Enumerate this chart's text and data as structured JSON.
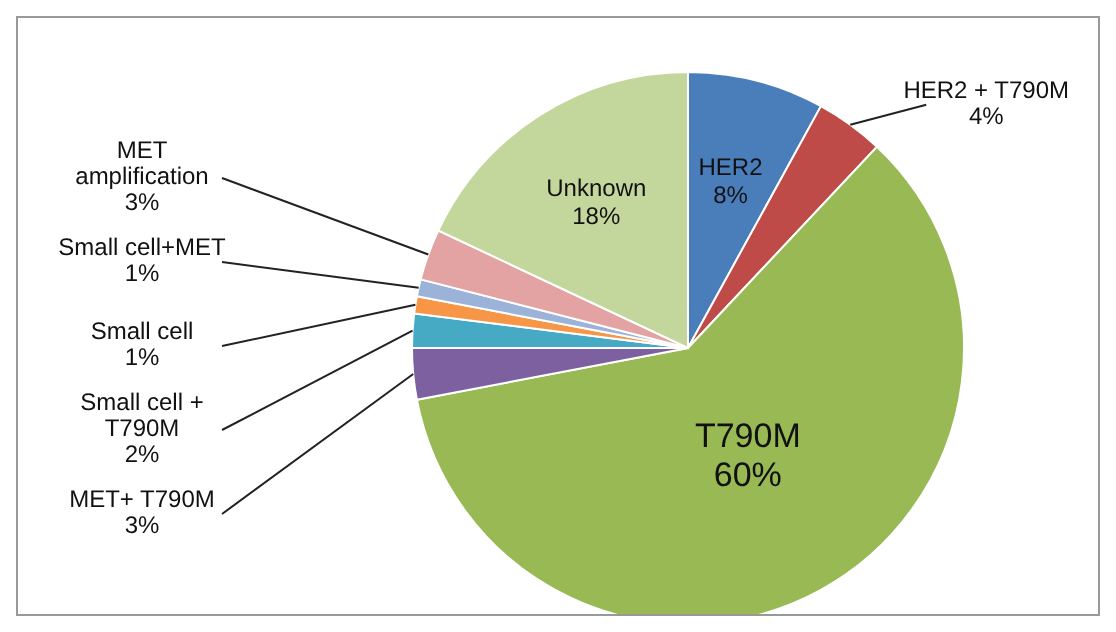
{
  "chart_data": {
    "type": "pie",
    "categories": [
      "HER2",
      "HER2 + T790M",
      "T790M",
      "MET+ T790M",
      "Small cell + T790M",
      "Small cell",
      "Small cell+MET",
      "MET amplification",
      "Unknown"
    ],
    "values": [
      8,
      4,
      60,
      3,
      2,
      1,
      1,
      3,
      18
    ],
    "value_labels": [
      "8%",
      "4%",
      "60%",
      "3%",
      "2%",
      "1%",
      "1%",
      "3%",
      "18%"
    ],
    "colors": [
      "#4a7ebb",
      "#be4b48",
      "#98b954",
      "#7d60a0",
      "#46aac5",
      "#f79646",
      "#9cb3d9",
      "#e2a3a2",
      "#c3d69b"
    ]
  }
}
